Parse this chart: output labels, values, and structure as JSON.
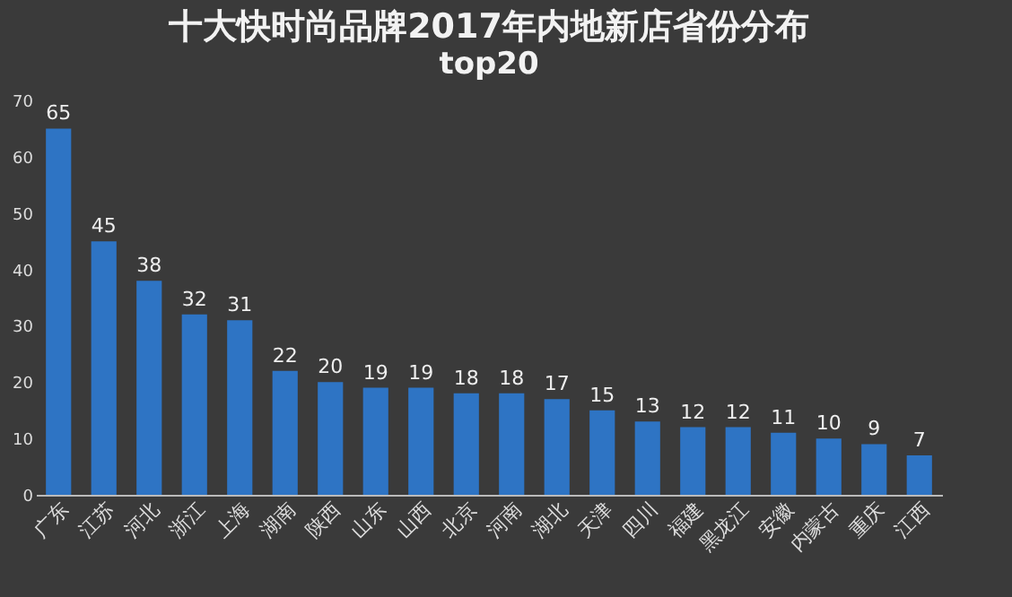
{
  "chart_data": {
    "type": "bar",
    "title": "十大快时尚品牌2017年内地新店省份分布",
    "subtitle": "top20",
    "categories": [
      "广东",
      "江苏",
      "河北",
      "浙江",
      "上海",
      "湖南",
      "陕西",
      "山东",
      "山西",
      "北京",
      "河南",
      "湖北",
      "天津",
      "四川",
      "福建",
      "黑龙江",
      "安徽",
      "内蒙古",
      "重庆",
      "江西"
    ],
    "values": [
      65,
      45,
      38,
      32,
      31,
      22,
      20,
      19,
      19,
      18,
      18,
      17,
      15,
      13,
      12,
      12,
      11,
      10,
      9,
      7
    ],
    "color": "#2e74c4",
    "ylim": [
      0,
      70
    ],
    "yticks": [
      0,
      10,
      20,
      30,
      40,
      50,
      60,
      70
    ],
    "grid": false,
    "data_labels": true
  }
}
